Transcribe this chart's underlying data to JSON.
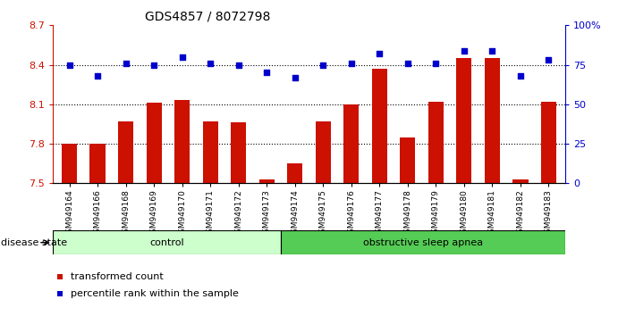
{
  "title": "GDS4857 / 8072798",
  "samples": [
    "GSM949164",
    "GSM949166",
    "GSM949168",
    "GSM949169",
    "GSM949170",
    "GSM949171",
    "GSM949172",
    "GSM949173",
    "GSM949174",
    "GSM949175",
    "GSM949176",
    "GSM949177",
    "GSM949178",
    "GSM949179",
    "GSM949180",
    "GSM949181",
    "GSM949182",
    "GSM949183"
  ],
  "red_values": [
    7.8,
    7.8,
    7.97,
    8.11,
    8.13,
    7.97,
    7.96,
    7.53,
    7.65,
    7.97,
    8.1,
    8.37,
    7.85,
    8.12,
    8.45,
    8.45,
    7.53,
    8.12
  ],
  "blue_values": [
    75,
    68,
    76,
    75,
    80,
    76,
    75,
    70,
    67,
    75,
    76,
    82,
    76,
    76,
    84,
    84,
    68,
    78
  ],
  "control_count": 8,
  "ylim_left": [
    7.5,
    8.7
  ],
  "ylim_right": [
    0,
    100
  ],
  "yticks_left": [
    7.5,
    7.8,
    8.1,
    8.4,
    8.7
  ],
  "yticks_right": [
    0,
    25,
    50,
    75,
    100
  ],
  "ytick_labels_left": [
    "7.5",
    "7.8",
    "8.1",
    "8.4",
    "8.7"
  ],
  "ytick_labels_right": [
    "0",
    "25",
    "50",
    "75",
    "100%"
  ],
  "hlines": [
    7.8,
    8.1,
    8.4
  ],
  "bar_color": "#cc1100",
  "dot_color": "#0000cc",
  "control_fill": "#ccffcc",
  "apnea_fill": "#55cc55",
  "control_label": "control",
  "apnea_label": "obstructive sleep apnea",
  "disease_state_label": "disease state",
  "legend_red": "transformed count",
  "legend_blue": "percentile rank within the sample",
  "bar_width": 0.55
}
